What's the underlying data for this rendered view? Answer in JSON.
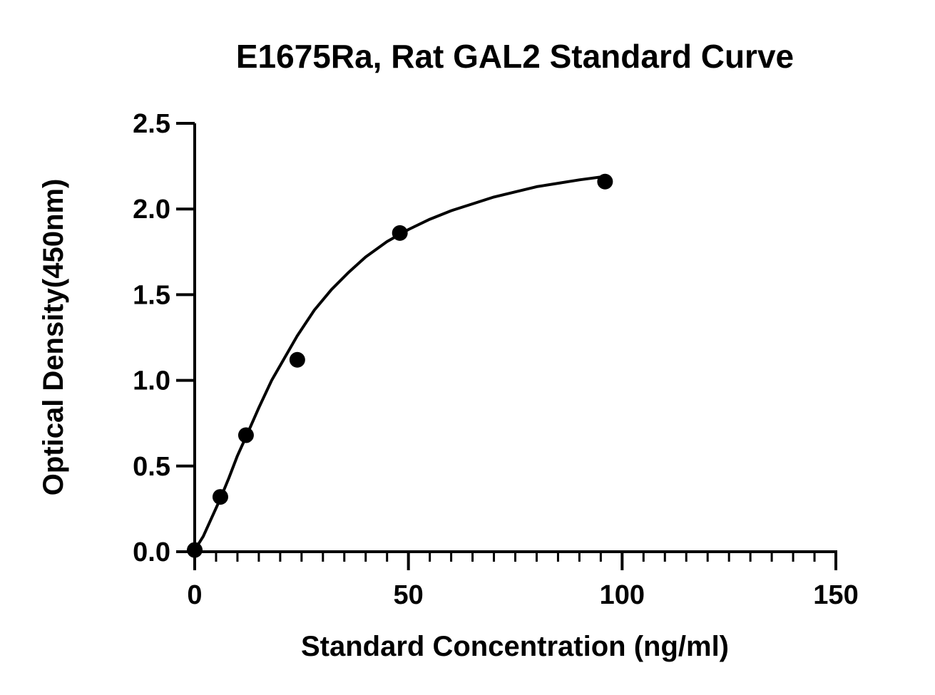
{
  "chart_data": {
    "type": "scatter",
    "title": "E1675Ra, Rat GAL2 Standard Curve",
    "xlabel": "Standard Concentration (ng/ml)",
    "ylabel": "Optical Density(450nm)",
    "xlim": [
      0,
      150
    ],
    "ylim": [
      0,
      2.5
    ],
    "x_ticks": [
      "0",
      "50",
      "100",
      "150"
    ],
    "y_ticks": [
      "0.0",
      "0.5",
      "1.0",
      "1.5",
      "2.0",
      "2.5"
    ],
    "x_minor_step": 5,
    "grid": false,
    "legend": "none",
    "marker_color": "#000000",
    "line_color": "#000000",
    "series": [
      {
        "points": [
          {
            "x": 0,
            "y": 0.01
          },
          {
            "x": 6,
            "y": 0.32
          },
          {
            "x": 12,
            "y": 0.68
          },
          {
            "x": 24,
            "y": 1.12
          },
          {
            "x": 48,
            "y": 1.86
          },
          {
            "x": 96,
            "y": 2.16
          }
        ]
      }
    ],
    "fit_curve": {
      "x": [
        0,
        2,
        4,
        6,
        8,
        10,
        12,
        15,
        18,
        21,
        24,
        28,
        32,
        36,
        40,
        45,
        50,
        55,
        60,
        65,
        70,
        75,
        80,
        85,
        90,
        96
      ],
      "y": [
        0.01,
        0.09,
        0.2,
        0.31,
        0.43,
        0.56,
        0.67,
        0.84,
        1.0,
        1.13,
        1.26,
        1.41,
        1.53,
        1.63,
        1.72,
        1.81,
        1.88,
        1.94,
        1.99,
        2.03,
        2.07,
        2.1,
        2.13,
        2.15,
        2.17,
        2.19
      ]
    }
  }
}
